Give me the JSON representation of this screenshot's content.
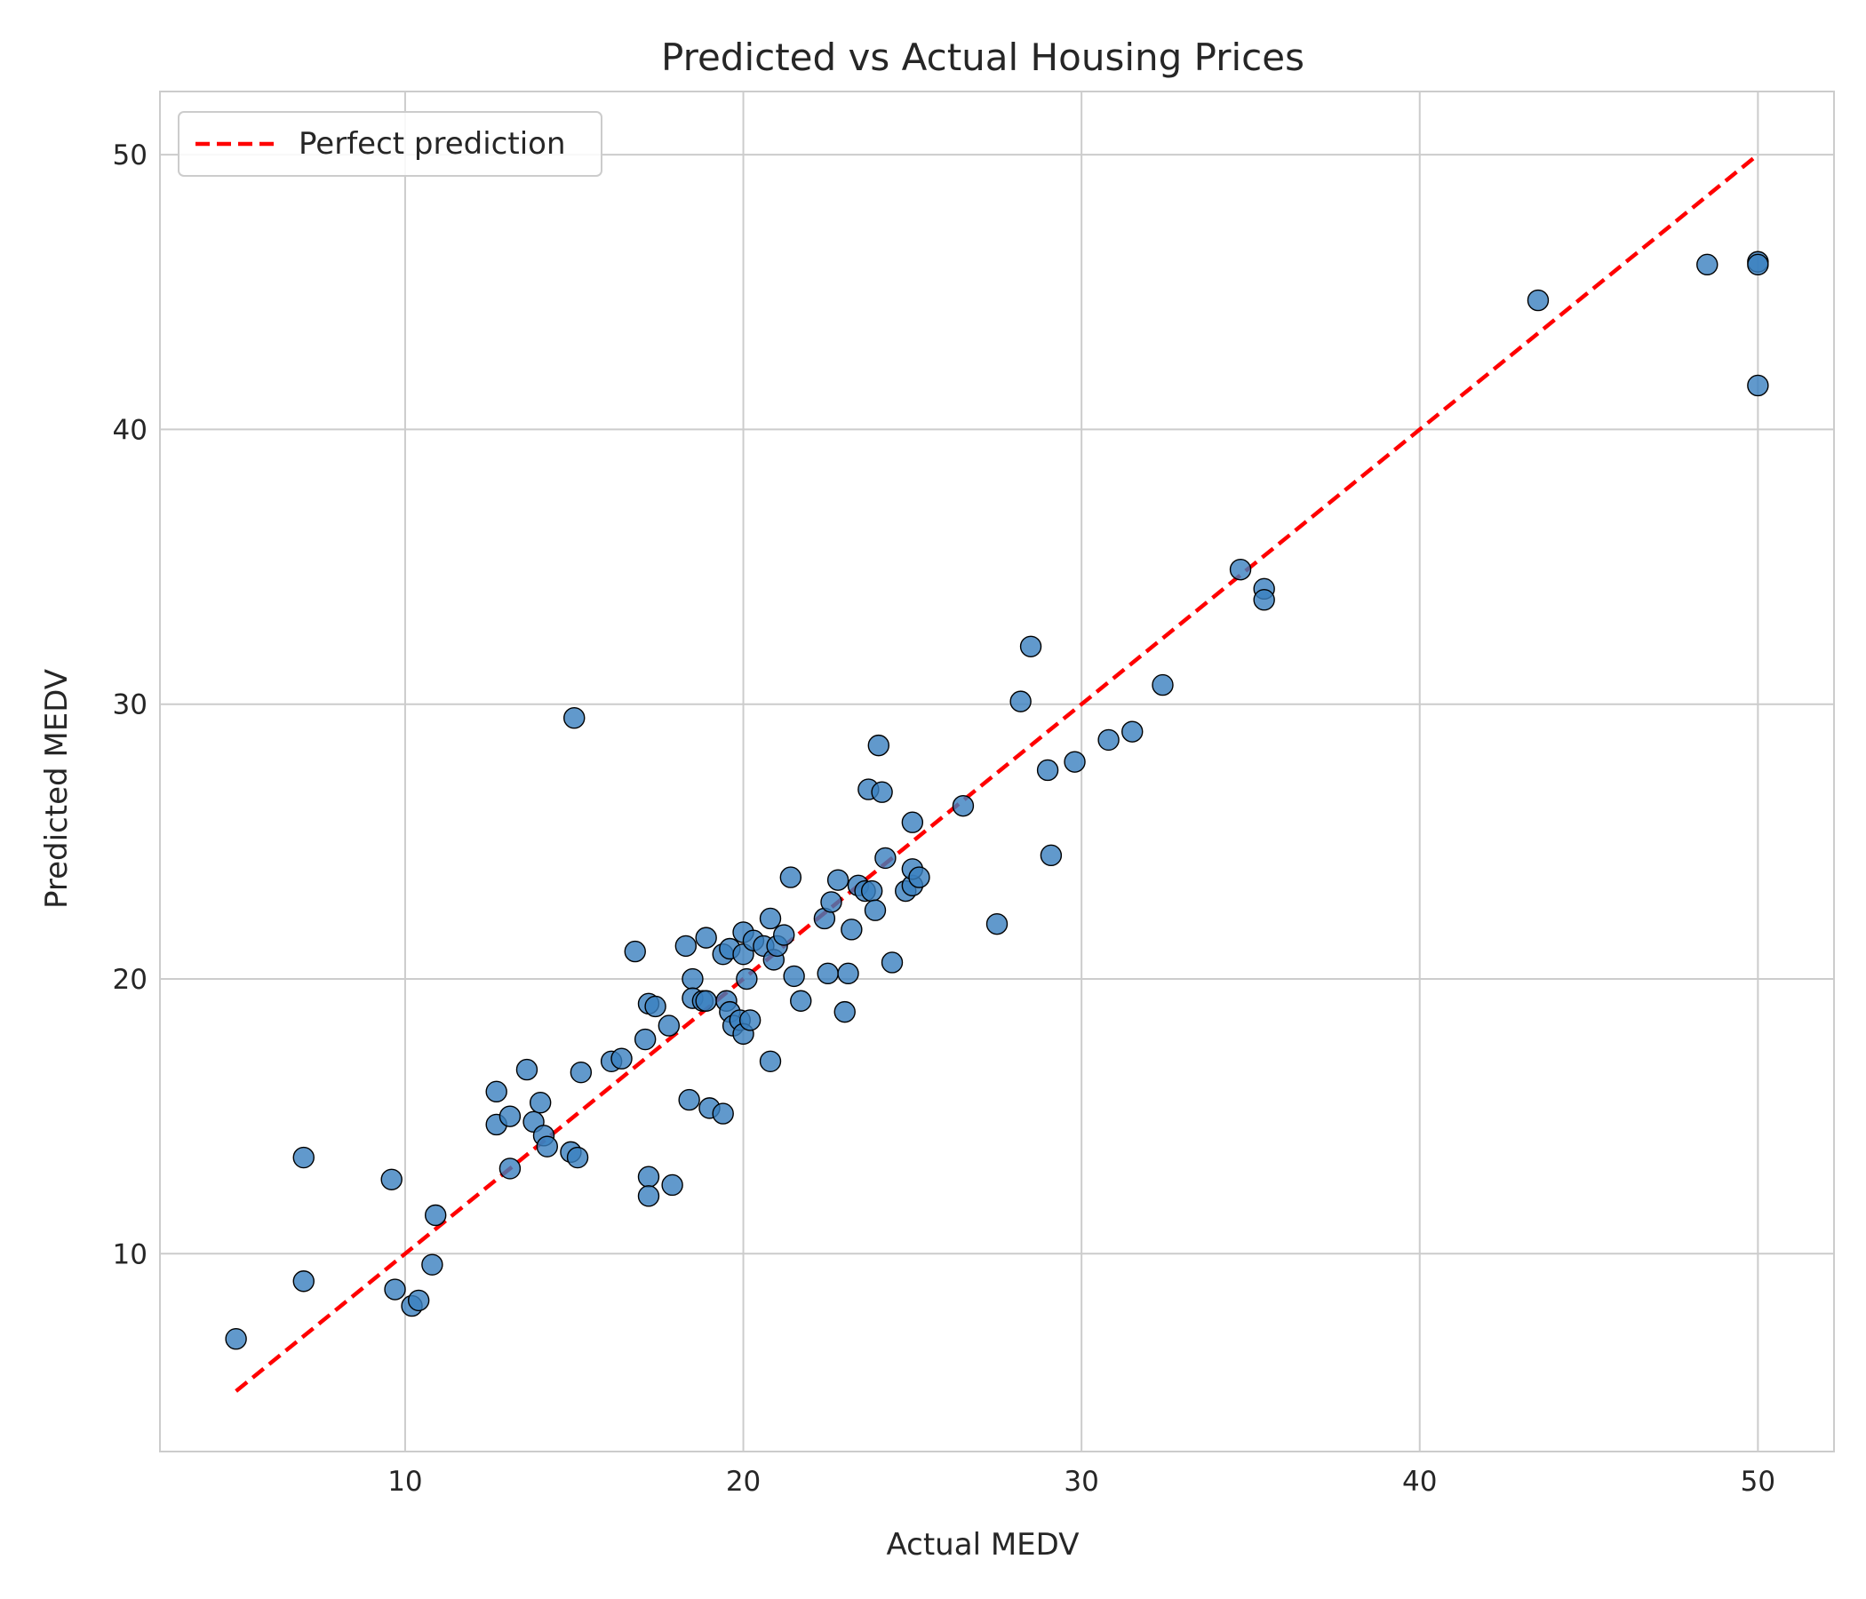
{
  "chart_data": {
    "type": "scatter",
    "title": "Predicted vs Actual Housing Prices",
    "xlabel": "Actual MEDV",
    "ylabel": "Predicted MEDV",
    "xlim": [
      2.75,
      52.25
    ],
    "ylim": [
      2.8,
      52.3
    ],
    "xticks": [
      10,
      20,
      30,
      40,
      50
    ],
    "yticks": [
      10,
      20,
      30,
      40,
      50
    ],
    "grid": true,
    "legend": {
      "placement": "top-left",
      "entries": [
        "Perfect prediction"
      ]
    },
    "colors": {
      "points": "#3a7fbf",
      "point_edge": "#000000",
      "reference_line": "#ff0000",
      "grid": "#cccccc",
      "frame": "#cccccc"
    },
    "reference_line": {
      "name": "Perfect prediction",
      "x": [
        5,
        50
      ],
      "y": [
        5,
        50
      ],
      "style": "dashed"
    },
    "series": [
      {
        "points": [
          [
            5.0,
            6.9
          ],
          [
            7.0,
            13.5
          ],
          [
            7.0,
            9.0
          ],
          [
            9.6,
            12.7
          ],
          [
            9.7,
            8.7
          ],
          [
            10.2,
            8.1
          ],
          [
            10.4,
            8.3
          ],
          [
            10.8,
            9.6
          ],
          [
            10.9,
            11.4
          ],
          [
            12.7,
            15.9
          ],
          [
            12.7,
            14.7
          ],
          [
            13.1,
            15.0
          ],
          [
            13.1,
            13.1
          ],
          [
            13.6,
            16.7
          ],
          [
            13.8,
            14.8
          ],
          [
            14.0,
            15.5
          ],
          [
            14.1,
            14.3
          ],
          [
            14.2,
            13.9
          ],
          [
            14.9,
            13.7
          ],
          [
            15.0,
            29.5
          ],
          [
            15.1,
            13.5
          ],
          [
            15.2,
            16.6
          ],
          [
            16.1,
            17.0
          ],
          [
            16.4,
            17.1
          ],
          [
            16.8,
            21.0
          ],
          [
            17.1,
            17.8
          ],
          [
            17.2,
            19.1
          ],
          [
            17.2,
            12.8
          ],
          [
            17.2,
            12.1
          ],
          [
            17.4,
            19.0
          ],
          [
            17.8,
            18.3
          ],
          [
            17.9,
            12.5
          ],
          [
            18.3,
            21.2
          ],
          [
            18.4,
            15.6
          ],
          [
            18.5,
            20.0
          ],
          [
            18.5,
            19.3
          ],
          [
            18.8,
            19.2
          ],
          [
            18.9,
            19.2
          ],
          [
            18.9,
            21.5
          ],
          [
            19.0,
            15.3
          ],
          [
            19.4,
            15.1
          ],
          [
            19.4,
            20.9
          ],
          [
            19.5,
            19.2
          ],
          [
            19.6,
            18.8
          ],
          [
            19.6,
            21.1
          ],
          [
            19.7,
            18.3
          ],
          [
            19.9,
            18.5
          ],
          [
            20.0,
            18.0
          ],
          [
            20.0,
            21.7
          ],
          [
            20.0,
            20.9
          ],
          [
            20.1,
            20.0
          ],
          [
            20.2,
            18.5
          ],
          [
            20.3,
            21.4
          ],
          [
            20.6,
            21.2
          ],
          [
            20.8,
            22.2
          ],
          [
            20.8,
            17.0
          ],
          [
            20.9,
            20.7
          ],
          [
            21.0,
            21.2
          ],
          [
            21.2,
            21.6
          ],
          [
            21.4,
            23.7
          ],
          [
            21.5,
            20.1
          ],
          [
            21.7,
            19.2
          ],
          [
            22.4,
            22.2
          ],
          [
            22.5,
            20.2
          ],
          [
            22.6,
            22.8
          ],
          [
            22.8,
            23.6
          ],
          [
            23.0,
            18.8
          ],
          [
            23.1,
            20.2
          ],
          [
            23.2,
            21.8
          ],
          [
            23.4,
            23.4
          ],
          [
            23.6,
            23.2
          ],
          [
            23.7,
            26.9
          ],
          [
            23.8,
            23.2
          ],
          [
            23.9,
            22.5
          ],
          [
            24.0,
            28.5
          ],
          [
            24.1,
            26.8
          ],
          [
            24.2,
            24.4
          ],
          [
            24.4,
            20.6
          ],
          [
            24.8,
            23.2
          ],
          [
            25.0,
            25.7
          ],
          [
            25.0,
            23.4
          ],
          [
            25.0,
            24.0
          ],
          [
            25.2,
            23.7
          ],
          [
            26.5,
            26.3
          ],
          [
            27.5,
            22.0
          ],
          [
            28.2,
            30.1
          ],
          [
            28.5,
            32.1
          ],
          [
            29.0,
            27.6
          ],
          [
            29.1,
            24.5
          ],
          [
            29.8,
            27.9
          ],
          [
            30.8,
            28.7
          ],
          [
            31.5,
            29.0
          ],
          [
            32.4,
            30.7
          ],
          [
            34.7,
            34.9
          ],
          [
            35.4,
            34.2
          ],
          [
            35.4,
            33.8
          ],
          [
            43.5,
            44.7
          ],
          [
            48.5,
            46.0
          ],
          [
            50.0,
            46.1
          ],
          [
            50.0,
            46.0
          ],
          [
            50.0,
            41.6
          ]
        ]
      }
    ]
  }
}
